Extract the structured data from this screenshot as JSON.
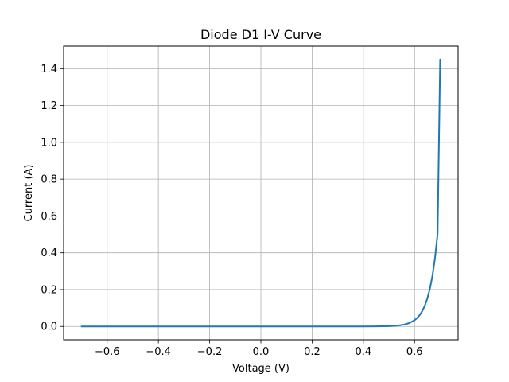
{
  "chart_data": {
    "type": "line",
    "title": "Diode D1 I-V Curve",
    "xlabel": "Voltage (V)",
    "ylabel": "Current (A)",
    "xlim": [
      -0.77,
      0.77
    ],
    "ylim": [
      -0.0725,
      1.5225
    ],
    "grid": true,
    "x_ticks": [
      -0.6,
      -0.4,
      -0.2,
      0.0,
      0.2,
      0.4,
      0.6
    ],
    "x_tick_labels": [
      "−0.6",
      "−0.4",
      "−0.2",
      "0.0",
      "0.2",
      "0.4",
      "0.6"
    ],
    "y_ticks": [
      0.0,
      0.2,
      0.4,
      0.6,
      0.8,
      1.0,
      1.2,
      1.4
    ],
    "y_tick_labels": [
      "0.0",
      "0.2",
      "0.4",
      "0.6",
      "0.8",
      "1.0",
      "1.2",
      "1.4"
    ],
    "series": [
      {
        "color": "#1f77b4",
        "x": [
          -0.7,
          -0.6,
          -0.4,
          -0.2,
          0.0,
          0.2,
          0.4,
          0.45,
          0.5,
          0.52,
          0.54,
          0.56,
          0.58,
          0.6,
          0.61,
          0.62,
          0.63,
          0.64,
          0.65,
          0.66,
          0.67,
          0.68,
          0.69,
          0.7
        ],
        "y": [
          0.0,
          0.0,
          0.0,
          0.0,
          0.0,
          0.0,
          0.0,
          0.0003,
          0.0017,
          0.0031,
          0.0057,
          0.0104,
          0.0188,
          0.034,
          0.0459,
          0.0619,
          0.0835,
          0.1127,
          0.152,
          0.2051,
          0.2767,
          0.3734,
          0.5038,
          1.45
        ]
      }
    ]
  }
}
